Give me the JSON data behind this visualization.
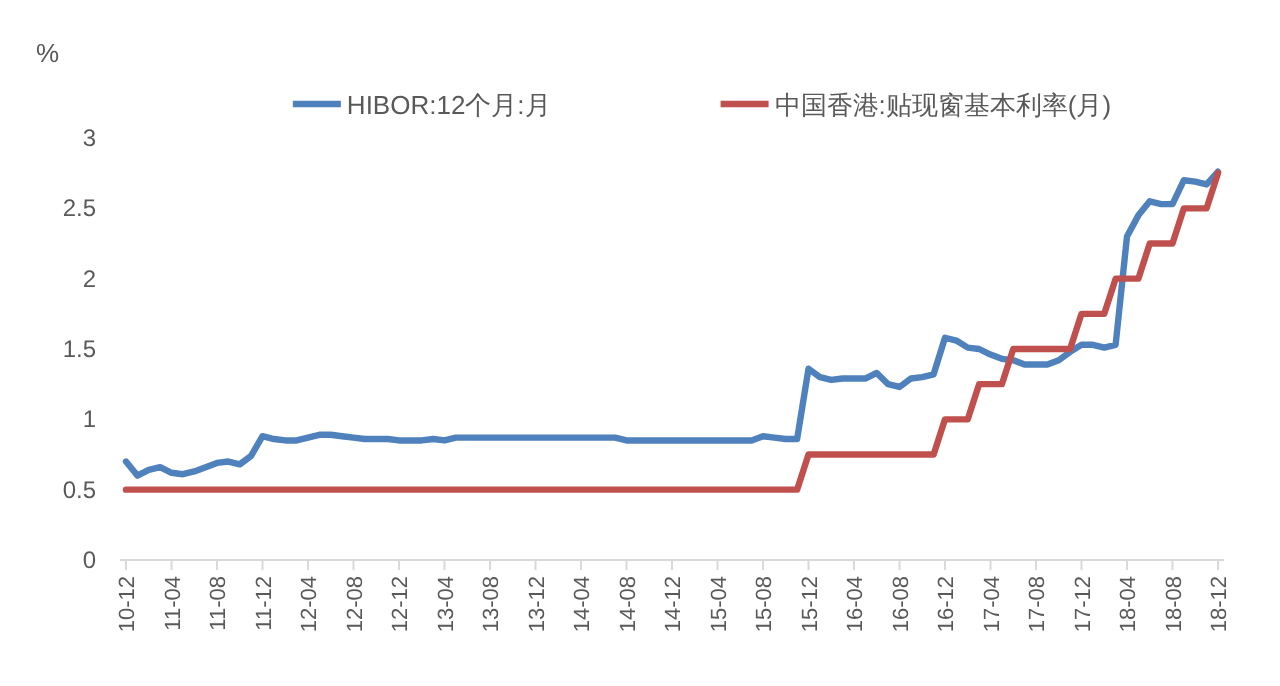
{
  "chart_data": {
    "type": "line",
    "ylabel": "%",
    "legend": "top",
    "categories": [
      "10-12",
      null,
      null,
      null,
      "11-04",
      null,
      null,
      null,
      "11-08",
      null,
      null,
      null,
      "11-12",
      null,
      null,
      null,
      "12-04",
      null,
      null,
      null,
      "12-08",
      null,
      null,
      null,
      "12-12",
      null,
      null,
      null,
      "13-04",
      null,
      null,
      null,
      "13-08",
      null,
      null,
      null,
      "13-12",
      null,
      null,
      null,
      "14-04",
      null,
      null,
      null,
      "14-08",
      null,
      null,
      null,
      "14-12",
      null,
      null,
      null,
      "15-04",
      null,
      null,
      null,
      "15-08",
      null,
      null,
      null,
      "15-12",
      null,
      null,
      null,
      "16-04",
      null,
      null,
      null,
      "16-08",
      null,
      null,
      null,
      "16-12",
      null,
      null,
      null,
      "17-04",
      null,
      null,
      null,
      "17-08",
      null,
      null,
      null,
      "17-12",
      null,
      null,
      null,
      "18-04",
      null,
      null,
      null,
      "18-08",
      null,
      null,
      null,
      "18-12"
    ],
    "ylim": [
      0,
      3
    ],
    "yticks": [
      0,
      0.5,
      1,
      1.5,
      2,
      2.5,
      3
    ],
    "series": [
      {
        "name": "HIBOR:12个月:月",
        "color": "#4f81bd",
        "values": [
          0.7,
          0.6,
          0.64,
          0.66,
          0.62,
          0.61,
          0.63,
          0.66,
          0.69,
          0.7,
          0.68,
          0.74,
          0.88,
          0.86,
          0.85,
          0.85,
          0.87,
          0.89,
          0.89,
          0.88,
          0.87,
          0.86,
          0.86,
          0.86,
          0.85,
          0.85,
          0.85,
          0.86,
          0.85,
          0.87,
          0.87,
          0.87,
          0.87,
          0.87,
          0.87,
          0.87,
          0.87,
          0.87,
          0.87,
          0.87,
          0.87,
          0.87,
          0.87,
          0.87,
          0.85,
          0.85,
          0.85,
          0.85,
          0.85,
          0.85,
          0.85,
          0.85,
          0.85,
          0.85,
          0.85,
          0.85,
          0.88,
          0.87,
          0.86,
          0.86,
          1.36,
          1.3,
          1.28,
          1.29,
          1.29,
          1.29,
          1.33,
          1.25,
          1.23,
          1.29,
          1.3,
          1.32,
          1.58,
          1.56,
          1.51,
          1.5,
          1.46,
          1.43,
          1.42,
          1.39,
          1.39,
          1.39,
          1.42,
          1.48,
          1.53,
          1.53,
          1.51,
          1.53,
          2.3,
          2.45,
          2.55,
          2.53,
          2.53,
          2.7,
          2.69,
          2.67,
          2.76
        ]
      },
      {
        "name": "中国香港:贴现窗基本利率(月)",
        "color": "#c0504d",
        "values": [
          0.5,
          0.5,
          0.5,
          0.5,
          0.5,
          0.5,
          0.5,
          0.5,
          0.5,
          0.5,
          0.5,
          0.5,
          0.5,
          0.5,
          0.5,
          0.5,
          0.5,
          0.5,
          0.5,
          0.5,
          0.5,
          0.5,
          0.5,
          0.5,
          0.5,
          0.5,
          0.5,
          0.5,
          0.5,
          0.5,
          0.5,
          0.5,
          0.5,
          0.5,
          0.5,
          0.5,
          0.5,
          0.5,
          0.5,
          0.5,
          0.5,
          0.5,
          0.5,
          0.5,
          0.5,
          0.5,
          0.5,
          0.5,
          0.5,
          0.5,
          0.5,
          0.5,
          0.5,
          0.5,
          0.5,
          0.5,
          0.5,
          0.5,
          0.5,
          0.5,
          0.75,
          0.75,
          0.75,
          0.75,
          0.75,
          0.75,
          0.75,
          0.75,
          0.75,
          0.75,
          0.75,
          0.75,
          1.0,
          1.0,
          1.0,
          1.25,
          1.25,
          1.25,
          1.5,
          1.5,
          1.5,
          1.5,
          1.5,
          1.5,
          1.75,
          1.75,
          1.75,
          2.0,
          2.0,
          2.0,
          2.25,
          2.25,
          2.25,
          2.5,
          2.5,
          2.5,
          2.75
        ]
      }
    ]
  }
}
